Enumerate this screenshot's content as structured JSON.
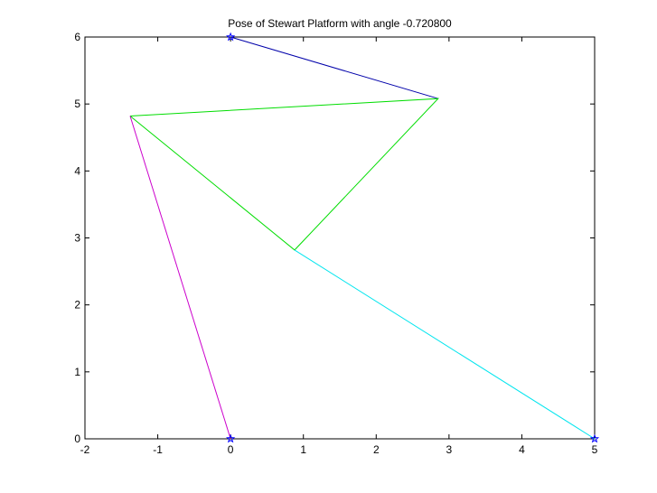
{
  "chart_data": {
    "type": "line",
    "title": "Pose of Stewart Platform with angle -0.720800",
    "xlabel": "",
    "ylabel": "",
    "xlim": [
      -2,
      5
    ],
    "ylim": [
      0,
      6
    ],
    "xticks": [
      -2,
      -1,
      0,
      1,
      2,
      3,
      4,
      5
    ],
    "yticks": [
      0,
      1,
      2,
      3,
      4,
      5,
      6
    ],
    "xtick_labels": [
      "-2",
      "-1",
      "0",
      "1",
      "2",
      "3",
      "4",
      "5"
    ],
    "ytick_labels": [
      "0",
      "1",
      "2",
      "3",
      "4",
      "5",
      "6"
    ],
    "grid": false,
    "legend": "none",
    "series": [
      {
        "color": "#0000aa",
        "points": [
          [
            0,
            6
          ],
          [
            2.85,
            5.08
          ]
        ]
      },
      {
        "color": "#00dd00",
        "points": [
          [
            -1.38,
            4.82
          ],
          [
            2.85,
            5.08
          ],
          [
            0.88,
            2.82
          ],
          [
            -1.38,
            4.82
          ]
        ]
      },
      {
        "color": "#cc00cc",
        "points": [
          [
            -1.38,
            4.82
          ],
          [
            0,
            0
          ]
        ]
      },
      {
        "color": "#00e5ee",
        "points": [
          [
            0.88,
            2.82
          ],
          [
            5,
            0
          ]
        ]
      }
    ],
    "markers": {
      "style": "star",
      "color": "#0000ff",
      "points": [
        [
          0,
          6
        ],
        [
          0,
          0
        ],
        [
          5,
          0
        ]
      ]
    }
  }
}
